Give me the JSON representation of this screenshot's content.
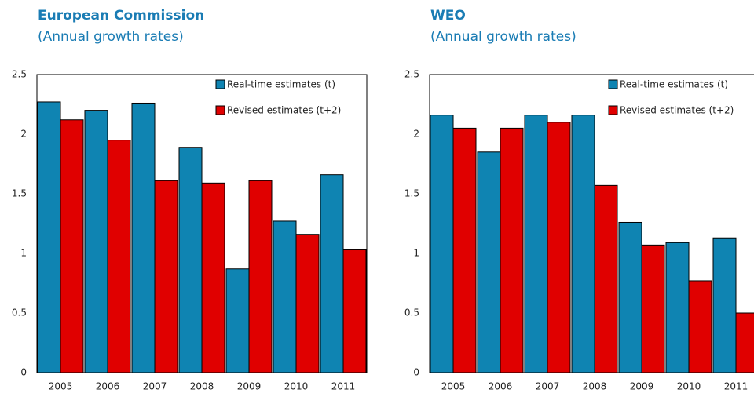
{
  "chart_data": [
    {
      "type": "bar",
      "title": "European Commission",
      "subtitle": "(Annual growth rates)",
      "categories": [
        "2005",
        "2006",
        "2007",
        "2008",
        "2009",
        "2010",
        "2011"
      ],
      "series": [
        {
          "name": "Real-time estimates (t)",
          "color": "#0f84b2",
          "values": [
            2.27,
            2.2,
            2.26,
            1.89,
            0.87,
            1.27,
            1.66
          ]
        },
        {
          "name": "Revised estimates (t+2)",
          "color": "#e00000",
          "values": [
            2.12,
            1.95,
            1.61,
            1.59,
            1.61,
            1.16,
            1.03
          ]
        }
      ],
      "ylim": [
        0,
        2.5
      ],
      "yticks": [
        0,
        0.5,
        1,
        1.5,
        2,
        2.5
      ],
      "legend": "upper right"
    },
    {
      "type": "bar",
      "title": "WEO",
      "subtitle": "(Annual growth rates)",
      "categories": [
        "2005",
        "2006",
        "2007",
        "2008",
        "2009",
        "2010",
        "2011"
      ],
      "series": [
        {
          "name": "Real-time estimates (t)",
          "color": "#0f84b2",
          "values": [
            2.16,
            1.85,
            2.16,
            2.16,
            1.26,
            1.09,
            1.13
          ]
        },
        {
          "name": "Revised estimates (t+2)",
          "color": "#e00000",
          "values": [
            2.05,
            2.05,
            2.1,
            1.57,
            1.07,
            0.77,
            0.5
          ]
        }
      ],
      "ylim": [
        0,
        2.5
      ],
      "yticks": [
        0,
        0.5,
        1,
        1.5,
        2,
        2.5
      ],
      "legend": "upper right"
    }
  ]
}
